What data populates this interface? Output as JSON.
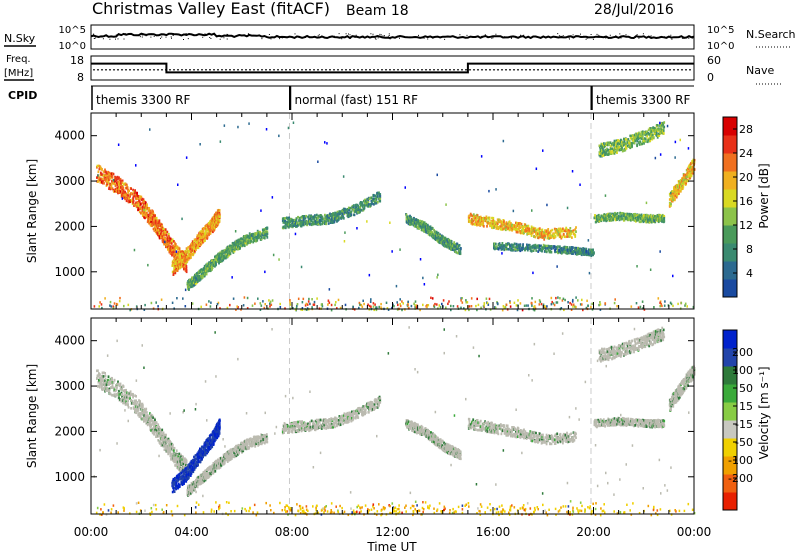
{
  "header": {
    "title": "Christmas Valley East (fitACF)",
    "beam": "Beam 18",
    "date": "28/Jul/2016"
  },
  "strips": {
    "nsky_label": "N.Sky",
    "nsky_ticks": [
      "10^5",
      "10^0"
    ],
    "nsearch_label": "N.Search",
    "nsearch_ticks": [
      "10^5",
      "10^0"
    ],
    "freq_label": "Freq.",
    "freq_unit": "[MHz]",
    "freq_ticks": [
      "18",
      "8"
    ],
    "nave_label": "Nave",
    "nave_ticks": [
      "60",
      "0"
    ],
    "cpid_label": "CPID",
    "cpid_segments": [
      {
        "label": "themis 3300 RF",
        "start_hour": 0,
        "end_hour": 7.9
      },
      {
        "label": "normal (fast) 151 RF",
        "start_hour": 7.9,
        "end_hour": 19.9
      },
      {
        "label": "themis 3300 RF",
        "start_hour": 19.9,
        "end_hour": 24
      }
    ],
    "freq_series": {
      "hours": [
        0,
        3,
        3,
        15,
        15,
        24
      ],
      "mhz": [
        15,
        15,
        11,
        11,
        15,
        15
      ]
    },
    "nave_level": 25
  },
  "colors": {
    "power_scale": [
      "#0000ff",
      "#1a4aa0",
      "#2c6a90",
      "#3a8a70",
      "#4a9a5a",
      "#8cc34a",
      "#d9d922",
      "#f0b020",
      "#f07020",
      "#e83018",
      "#d80000"
    ],
    "velocity_scale": [
      "#0022cc",
      "#2244aa",
      "#2e7a3a",
      "#3aaa3a",
      "#88cc44",
      "#c8c8c0",
      "#f0d000",
      "#f0a000",
      "#f06010",
      "#e82000",
      "#d00000"
    ],
    "ground": "#bbbbb0"
  },
  "chart_data": [
    {
      "type": "heatmap",
      "panel": "power",
      "ylabel": "Slant Range [km]",
      "xlabel": "Time UT",
      "xlim": [
        0,
        24
      ],
      "ylim": [
        180,
        4500
      ],
      "xticks": [
        "00:00",
        "04:00",
        "08:00",
        "12:00",
        "16:00",
        "20:00",
        "00:00"
      ],
      "yticks": [
        1000,
        2000,
        3000,
        4000
      ],
      "colorbar": {
        "label": "Power [dB]",
        "ticks": [
          4,
          8,
          12,
          16,
          20,
          24,
          28
        ],
        "range": [
          0,
          30
        ]
      },
      "traces": [
        {
          "x": [
            0.2,
            1.0,
            1.8,
            2.4,
            2.9,
            3.4,
            3.8
          ],
          "y": [
            3200,
            2950,
            2600,
            2200,
            1800,
            1400,
            1200
          ],
          "width": 380,
          "value": 24
        },
        {
          "x": [
            3.2,
            3.8,
            4.3,
            4.8,
            5.1
          ],
          "y": [
            1100,
            1400,
            1750,
            2050,
            2300
          ],
          "width": 320,
          "value": 22
        },
        {
          "x": [
            3.8,
            4.4,
            5.0,
            5.6,
            6.2,
            7.0
          ],
          "y": [
            700,
            1000,
            1300,
            1550,
            1750,
            1900
          ],
          "width": 220,
          "value": 12
        },
        {
          "x": [
            7.6,
            8.5,
            9.5,
            10.5,
            11.5
          ],
          "y": [
            2100,
            2150,
            2200,
            2400,
            2700
          ],
          "width": 220,
          "value": 10
        },
        {
          "x": [
            12.5,
            13.3,
            14.0,
            14.7
          ],
          "y": [
            2200,
            2000,
            1700,
            1500
          ],
          "width": 200,
          "value": 11
        },
        {
          "x": [
            15.0,
            16.0,
            17.0,
            18.0,
            19.3
          ],
          "y": [
            2200,
            2100,
            2000,
            1850,
            1900
          ],
          "width": 220,
          "value": 20
        },
        {
          "x": [
            16.0,
            17.5,
            19.0,
            20.0
          ],
          "y": [
            1600,
            1550,
            1500,
            1450
          ],
          "width": 150,
          "value": 9
        },
        {
          "x": [
            20.0,
            21.0,
            22.0,
            22.8
          ],
          "y": [
            2200,
            2250,
            2200,
            2200
          ],
          "width": 160,
          "value": 13
        },
        {
          "x": [
            20.2,
            21.0,
            22.0,
            22.8
          ],
          "y": [
            3700,
            3800,
            4000,
            4200
          ],
          "width": 280,
          "value": 14
        },
        {
          "x": [
            23.0,
            23.5,
            24.0
          ],
          "y": [
            2600,
            3000,
            3400
          ],
          "width": 300,
          "value": 20
        }
      ],
      "ground_band": {
        "y": [
          180,
          500
        ],
        "value": 8
      }
    },
    {
      "type": "heatmap",
      "panel": "velocity",
      "ylabel": "Slant Range [km]",
      "xlabel": "Time UT",
      "xlim": [
        0,
        24
      ],
      "ylim": [
        180,
        4500
      ],
      "xticks": [
        "00:00",
        "04:00",
        "08:00",
        "12:00",
        "16:00",
        "20:00",
        "00:00"
      ],
      "yticks": [
        1000,
        2000,
        3000,
        4000
      ],
      "colorbar": {
        "label": "Velocity [m s⁻¹]",
        "ticks": [
          200,
          100,
          50,
          15,
          -15,
          -50,
          -100,
          -200
        ]
      },
      "traces": [
        {
          "x": [
            0.2,
            1.0,
            1.8,
            2.4,
            2.9,
            3.4,
            3.8
          ],
          "y": [
            3200,
            2950,
            2600,
            2200,
            1800,
            1400,
            1200
          ],
          "width": 380,
          "value": 0
        },
        {
          "x": [
            3.2,
            3.8,
            4.3,
            4.8,
            5.1
          ],
          "y": [
            800,
            1100,
            1500,
            1850,
            2150
          ],
          "width": 320,
          "value": 150
        },
        {
          "x": [
            3.8,
            4.4,
            5.0,
            5.6,
            6.2,
            7.0
          ],
          "y": [
            700,
            1000,
            1300,
            1550,
            1750,
            1900
          ],
          "width": 220,
          "value": 5
        },
        {
          "x": [
            7.6,
            8.5,
            9.5,
            10.5,
            11.5
          ],
          "y": [
            2100,
            2150,
            2200,
            2400,
            2700
          ],
          "width": 220,
          "value": 0
        },
        {
          "x": [
            12.5,
            13.3,
            14.0,
            14.7
          ],
          "y": [
            2200,
            2000,
            1700,
            1500
          ],
          "width": 200,
          "value": 0
        },
        {
          "x": [
            15.0,
            16.0,
            17.0,
            18.0,
            19.3
          ],
          "y": [
            2200,
            2100,
            2000,
            1850,
            1900
          ],
          "width": 220,
          "value": 0
        },
        {
          "x": [
            20.0,
            21.0,
            22.0,
            22.8
          ],
          "y": [
            2200,
            2250,
            2200,
            2200
          ],
          "width": 160,
          "value": 0
        },
        {
          "x": [
            20.2,
            21.0,
            22.0,
            22.8
          ],
          "y": [
            3700,
            3800,
            4000,
            4200
          ],
          "width": 280,
          "value": 0
        },
        {
          "x": [
            23.0,
            23.5,
            24.0
          ],
          "y": [
            2600,
            3000,
            3400
          ],
          "width": 300,
          "value": 0
        }
      ],
      "ground_band": {
        "y": [
          180,
          500
        ],
        "value": -60
      }
    }
  ]
}
